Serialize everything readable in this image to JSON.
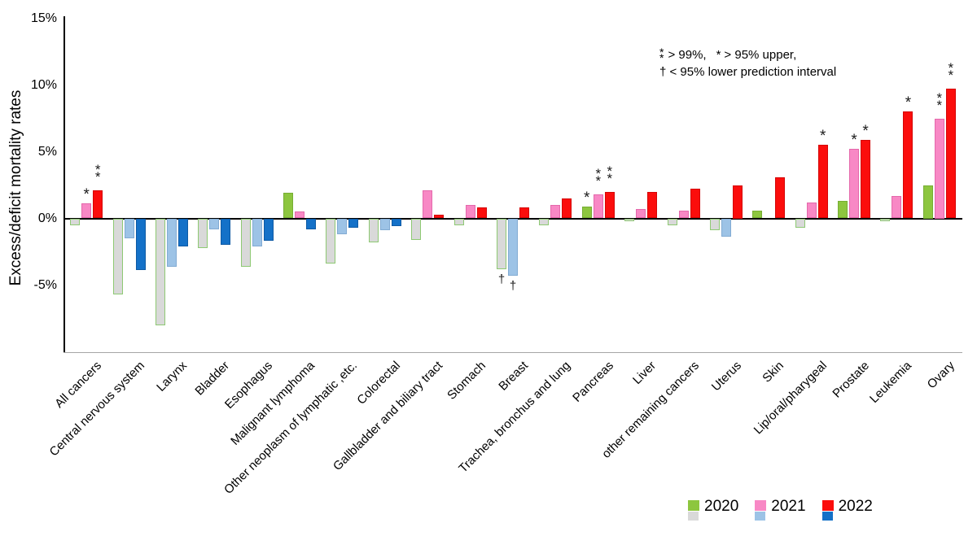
{
  "chart_data": {
    "type": "bar",
    "title": "",
    "ylabel": "Excess/deficit mortality rates",
    "xlabel": "",
    "ylim": [
      -10,
      15
    ],
    "grid": false,
    "legend_position": "bottom-right",
    "y_ticks": [
      {
        "label": "15%",
        "value": 15
      },
      {
        "label": "10%",
        "value": 10
      },
      {
        "label": "5%",
        "value": 5
      },
      {
        "label": "0%",
        "value": 0
      },
      {
        "label": "-5%",
        "value": -5
      }
    ],
    "annotation": {
      "marker_99": "**",
      "text_99": "> 99%,",
      "marker_95": "*",
      "text_95": "> 95% upper,",
      "line2": "† < 95% lower prediction interval"
    },
    "categories": [
      "All cancers",
      "Central nervous system",
      "Larynx",
      "Bladder",
      "Esophagus",
      "Malignant lymphoma",
      "Other neoplasm of lymphatic ,etc.",
      "Colorectal",
      "Gallbladder and biliary tract",
      "Stomach",
      "Breast",
      "Trachea, bronchus and lung",
      "Pancreas",
      "Liver",
      "other remaining cancers",
      "Uterus",
      "Skin",
      "Lip/oral/pharygeal",
      "Prostate",
      "Leukemia",
      "Ovary"
    ],
    "series": [
      {
        "name": "2020",
        "pos_color": "#8dc63f",
        "pos_border": "#76ad33",
        "neg_color": "#d9d9d9",
        "neg_border": "#8ec973",
        "values": [
          -0.5,
          -5.7,
          -8.0,
          -2.2,
          -3.6,
          1.9,
          -3.4,
          -1.8,
          -1.6,
          -0.5,
          -3.8,
          -0.5,
          0.9,
          -0.2,
          -0.5,
          -0.9,
          0.6,
          -0.7,
          1.3,
          -0.2,
          2.5
        ],
        "markers": [
          "",
          "",
          "",
          "",
          "",
          "",
          "",
          "",
          "",
          "",
          "†",
          "",
          "*",
          "",
          "",
          "",
          "",
          "",
          "",
          "",
          ""
        ]
      },
      {
        "name": "2021",
        "pos_color": "#f888c5",
        "pos_border": "#e468ab",
        "neg_color": "#9dc3e6",
        "neg_border": "#82abd3",
        "values": [
          1.1,
          -1.5,
          -3.6,
          -0.8,
          -2.1,
          0.5,
          -1.2,
          -0.9,
          2.1,
          1.0,
          -4.3,
          1.0,
          1.8,
          0.7,
          0.6,
          -1.4,
          0,
          1.2,
          5.2,
          1.7,
          7.5
        ],
        "markers": [
          "*",
          "",
          "",
          "",
          "",
          "",
          "",
          "",
          "",
          "",
          "†",
          "",
          "**",
          "",
          "",
          "",
          "",
          "",
          "*",
          "",
          "**"
        ]
      },
      {
        "name": "2022",
        "pos_color": "#fb0d0c",
        "pos_border": "#d40606",
        "neg_color": "#1471c8",
        "neg_border": "#0e5aa4",
        "values": [
          2.1,
          -3.9,
          -2.1,
          -2.0,
          -1.7,
          -0.8,
          -0.7,
          -0.6,
          0.3,
          0.8,
          0.8,
          1.5,
          2.0,
          2.0,
          2.2,
          2.5,
          3.1,
          5.5,
          5.9,
          8.0,
          9.7
        ],
        "markers": [
          "**",
          "",
          "",
          "",
          "",
          "",
          "",
          "",
          "",
          "",
          "",
          "",
          "**",
          "",
          "",
          "",
          "",
          "*",
          "*",
          "*",
          "**"
        ]
      }
    ]
  }
}
